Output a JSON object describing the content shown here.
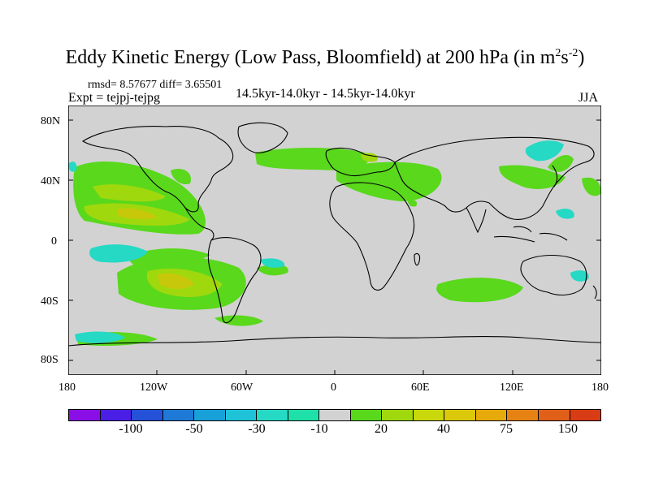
{
  "title": {
    "main": "Eddy Kinetic Energy (Low Pass, Bloomfield) at 200 hPa (in m",
    "exp1": "2",
    "mid": "s",
    "exp2": "-2",
    "close": ")"
  },
  "stats": "rmsd= 8.57677  diff= 3.65501",
  "expt": "Expt = tejpj-tejpg",
  "runs": "14.5kyr-14.0kyr - 14.5kyr-14.0kyr",
  "season": "JJA",
  "lat_labels": [
    "80N",
    "40N",
    "0",
    "40S",
    "80S"
  ],
  "lon_labels": [
    "180",
    "120W",
    "60W",
    "0",
    "60E",
    "120E",
    "180"
  ],
  "colorbar": {
    "colors": [
      "#8a0ee6",
      "#4b1ee6",
      "#2451d8",
      "#1f79d6",
      "#18a0d8",
      "#1ec3d8",
      "#25d9c5",
      "#1ee0a8",
      "#d2d2d2",
      "#59d81c",
      "#a0d80e",
      "#c8d80a",
      "#dcc80a",
      "#e6aa0a",
      "#e68214",
      "#e0601a",
      "#d83c14"
    ],
    "labels": [
      "-100",
      "-50",
      "-30",
      "-10",
      "20",
      "40",
      "75",
      "150"
    ]
  },
  "legend": {
    "land_color": "#d2d2d2",
    "positive_color": "#59d81c",
    "mid_color": "#a0d80e",
    "high_color": "#c8c80a",
    "negative_color": "#25d9c5"
  }
}
